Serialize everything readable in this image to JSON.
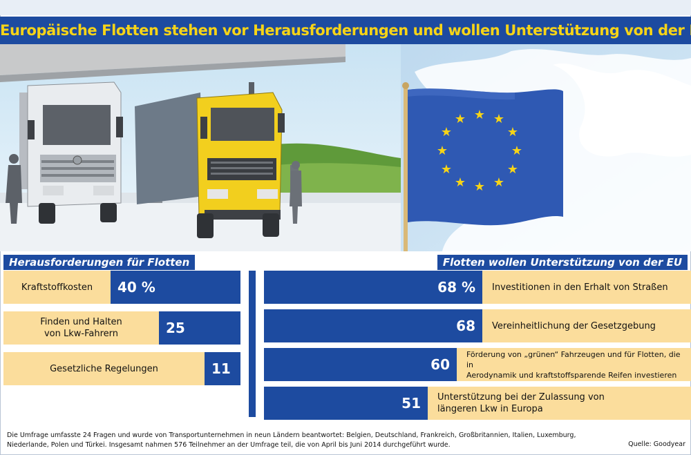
{
  "title": "Europäische Flotten stehen vor Herausforderungen und wollen Unterstützung von der EU",
  "colors": {
    "brand_blue": "#1d4ba0",
    "row_fill": "#fbdd9c",
    "title_yellow": "#f7d417",
    "eu_star": "#f7d417"
  },
  "illustration": {
    "trucks_icon": "trucks-at-filling-station",
    "flag_icon": "eu-flag",
    "map_icon": "europe-map"
  },
  "left": {
    "heading": "Herausforderungen für Flotten"
  },
  "right": {
    "heading": "Flotten wollen Unterstützung von der EU"
  },
  "chart_data": [
    {
      "type": "bar",
      "title": "Herausforderungen für Flotten",
      "orientation": "horizontal",
      "unit": "%",
      "categories": [
        "Kraftstoffkosten",
        "Finden und Halten\nvon Lkw-Fahrern",
        "Gesetzliche Regelungen"
      ],
      "values": [
        40,
        25,
        11
      ],
      "value_labels": [
        "40 %",
        "25",
        "11"
      ]
    },
    {
      "type": "bar",
      "title": "Flotten wollen Unterstützung von der EU",
      "orientation": "horizontal",
      "unit": "%",
      "categories": [
        "Investitionen in den Erhalt von Straßen",
        "Vereinheitlichung der Gesetzgebung",
        "Förderung von „grünen“ Fahrzeugen und für Flotten, die in\nAerodynamik und kraftstoffsparende Reifen investieren",
        "Unterstützung bei der Zulassung von\nlängeren Lkw in Europa"
      ],
      "values": [
        68,
        68,
        60,
        51
      ],
      "value_labels": [
        "68 %",
        "68",
        "60",
        "51"
      ]
    }
  ],
  "footnote": "Die Umfrage umfasste 24 Fragen und wurde von Transportunternehmen in neun Ländern beantwortet: Belgien, Deutschland, Frankreich, Großbritannien, Italien, Luxemburg, Niederlande, Polen und Türkei. Insgesamt nahmen 576 Teilnehmer an der Umfrage teil, die von April bis Juni 2014 durchgeführt wurde.",
  "source": "Quelle: Goodyear"
}
